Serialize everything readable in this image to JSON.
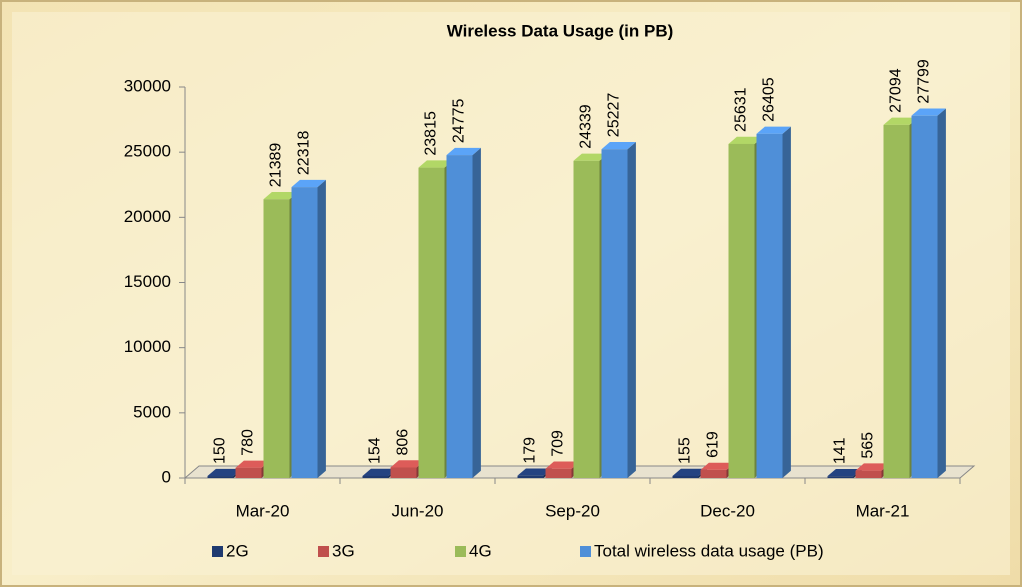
{
  "chart_data": {
    "type": "bar",
    "title": "Wireless Data Usage (in PB)",
    "categories": [
      "Mar-20",
      "Jun-20",
      "Sep-20",
      "Dec-20",
      "Mar-21"
    ],
    "series": [
      {
        "name": "2G",
        "color": "#1f3a70",
        "values": [
          150,
          154,
          179,
          155,
          141
        ]
      },
      {
        "name": "3G",
        "color": "#c0504d",
        "values": [
          780,
          806,
          709,
          619,
          565
        ]
      },
      {
        "name": "4G",
        "color": "#9bbb59",
        "values": [
          21389,
          23815,
          24339,
          25631,
          27094
        ]
      },
      {
        "name": "Total wireless data usage (PB)",
        "color": "#4f8fd8",
        "values": [
          22318,
          24775,
          25227,
          26405,
          27799
        ]
      }
    ],
    "ylim": [
      0,
      30000
    ],
    "yticks": [
      0,
      5000,
      10000,
      15000,
      20000,
      25000,
      30000
    ],
    "grid": false,
    "legend": "bottom"
  }
}
